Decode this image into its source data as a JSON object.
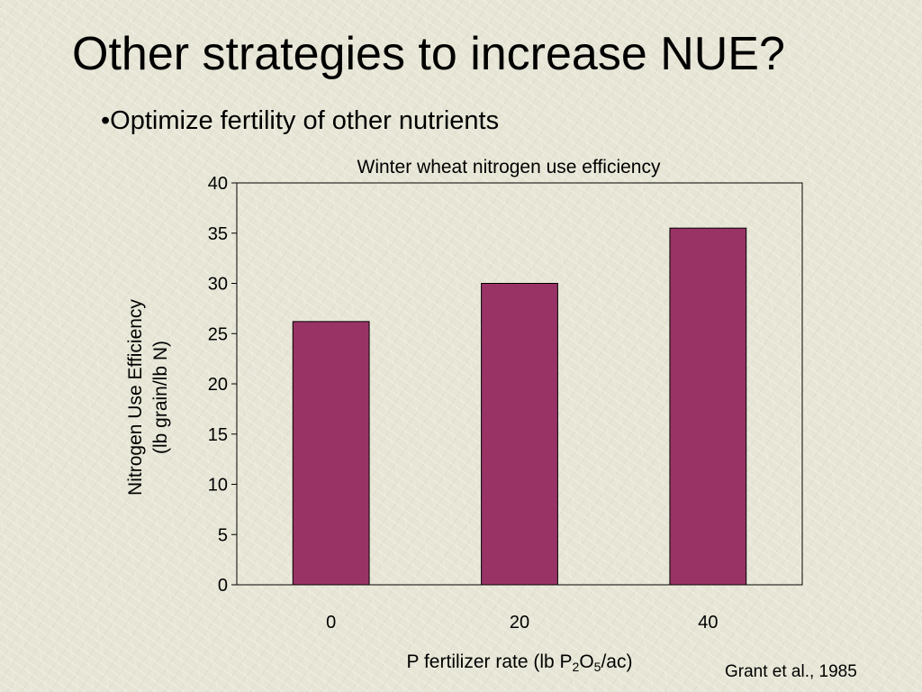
{
  "slide": {
    "title": "Other strategies to increase NUE?",
    "bullet_marker": "•",
    "bullet": "Optimize fertility of other nutrients",
    "source": "Grant et al., 1985"
  },
  "chart_data": {
    "type": "bar",
    "title": "Winter wheat nitrogen use efficiency",
    "categories": [
      "0",
      "20",
      "40"
    ],
    "values": [
      26.2,
      30,
      35.5
    ],
    "bar_color": "#993366",
    "ylabel_line1": "Nitrogen Use Efficiency",
    "ylabel_line2": "(lb grain/lb N)",
    "xlabel_prefix": "P fertilizer rate (lb P",
    "xlabel_sub1": "2",
    "xlabel_mid": "O",
    "xlabel_sub2": "5",
    "xlabel_suffix": "/ac)",
    "ylim": [
      0,
      40
    ],
    "yticks": [
      "0",
      "5",
      "10",
      "15",
      "20",
      "25",
      "30",
      "35",
      "40"
    ],
    "grid": false,
    "legend": "none"
  }
}
